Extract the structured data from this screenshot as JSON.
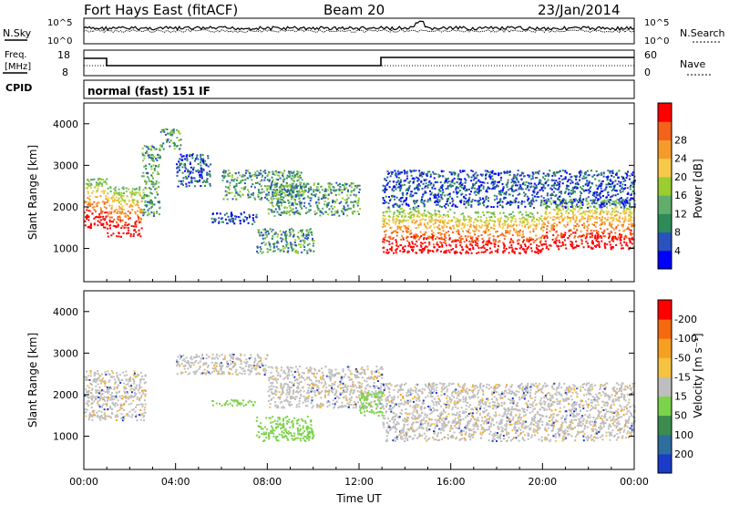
{
  "header": {
    "station": "Fort Hays East (fitACF)",
    "beam": "Beam 20",
    "date": "23/Jan/2014"
  },
  "panels": {
    "nsky_label": "N.Sky",
    "nsky_ticks": [
      "10^5",
      "10^0"
    ],
    "nsearch_label": "N.Search",
    "nsearch_ticks": [
      "10^5",
      "10^0"
    ],
    "freq_label": "Freq.",
    "freq_unit": "[MHz]",
    "freq_ticks": [
      "18",
      "8"
    ],
    "nave_label": "Nave",
    "nave_ticks": [
      "60",
      "0"
    ],
    "cpid_label": "CPID",
    "cpid_value": "normal (fast) 151 IF"
  },
  "chart_data": [
    {
      "type": "heatmap",
      "name": "power",
      "ylabel": "Slant Range [km]",
      "yticks": [
        1000,
        2000,
        3000,
        4000
      ],
      "ylim": [
        200,
        4500
      ],
      "xlim": [
        0,
        24
      ],
      "xticks": [
        "00:00",
        "04:00",
        "08:00",
        "12:00",
        "16:00",
        "20:00",
        "00:00"
      ],
      "colorbar_label": "Power [dB]",
      "colorbar_ticks": [
        "4",
        "8",
        "12",
        "16",
        "20",
        "24",
        "28"
      ],
      "colorbar_colors": [
        "#0000ff",
        "#2a52be",
        "#2e8b57",
        "#5fae6b",
        "#9acd32",
        "#f7c948",
        "#f59b2b",
        "#f5621b",
        "#ff0000"
      ],
      "blobs": [
        {
          "t0": 0.0,
          "t1": 1.0,
          "r0": 1500,
          "r1": 2700,
          "level": "high"
        },
        {
          "t0": 1.0,
          "t1": 2.5,
          "r0": 1300,
          "r1": 2500,
          "level": "high"
        },
        {
          "t0": 2.5,
          "t1": 3.3,
          "r0": 1800,
          "r1": 3500,
          "level": "mid"
        },
        {
          "t0": 3.3,
          "t1": 4.2,
          "r0": 3400,
          "r1": 3900,
          "level": "mid"
        },
        {
          "t0": 4.0,
          "t1": 5.5,
          "r0": 2500,
          "r1": 3300,
          "level": "low"
        },
        {
          "t0": 6.0,
          "t1": 9.5,
          "r0": 2200,
          "r1": 2900,
          "level": "mid"
        },
        {
          "t0": 8.0,
          "t1": 12.0,
          "r0": 1800,
          "r1": 2600,
          "level": "mid"
        },
        {
          "t0": 5.5,
          "t1": 7.5,
          "r0": 1600,
          "r1": 1900,
          "level": "low"
        },
        {
          "t0": 7.5,
          "t1": 10.0,
          "r0": 900,
          "r1": 1500,
          "level": "mid"
        },
        {
          "t0": 13.0,
          "t1": 16.0,
          "r0": 900,
          "r1": 2000,
          "level": "high"
        },
        {
          "t0": 16.0,
          "t1": 20.0,
          "r0": 900,
          "r1": 1900,
          "level": "high"
        },
        {
          "t0": 20.0,
          "t1": 24.0,
          "r0": 1000,
          "r1": 2200,
          "level": "high"
        },
        {
          "t0": 13.0,
          "t1": 24.0,
          "r0": 2000,
          "r1": 2900,
          "level": "low"
        }
      ]
    },
    {
      "type": "heatmap",
      "name": "velocity",
      "ylabel": "Slant Range [km]",
      "yticks": [
        1000,
        2000,
        3000,
        4000
      ],
      "ylim": [
        200,
        4500
      ],
      "xlim": [
        0,
        24
      ],
      "xticks": [
        "00:00",
        "04:00",
        "08:00",
        "12:00",
        "16:00",
        "20:00",
        "00:00"
      ],
      "xlabel": "Time UT",
      "colorbar_label": "Velocity [m s⁻¹]",
      "colorbar_ticks": [
        "200",
        "100",
        "50",
        "15",
        "-15",
        "-50",
        "-100",
        "-200"
      ],
      "colorbar_colors": [
        "#1a3cc8",
        "#2e6e9e",
        "#3c8c50",
        "#7cd24a",
        "#bebebe",
        "#f5c242",
        "#f5a020",
        "#f56a10",
        "#ff0000"
      ],
      "blobs": [
        {
          "t0": 0.0,
          "t1": 2.7,
          "r0": 1400,
          "r1": 2600,
          "level": "ground"
        },
        {
          "t0": 4.0,
          "t1": 8.0,
          "r0": 2500,
          "r1": 3000,
          "level": "ground"
        },
        {
          "t0": 8.0,
          "t1": 13.0,
          "r0": 1700,
          "r1": 2700,
          "level": "ground"
        },
        {
          "t0": 13.0,
          "t1": 24.0,
          "r0": 900,
          "r1": 2300,
          "level": "ground"
        },
        {
          "t0": 5.5,
          "t1": 7.5,
          "r0": 1750,
          "r1": 1900,
          "level": "slow"
        },
        {
          "t0": 7.5,
          "t1": 10.0,
          "r0": 900,
          "r1": 1500,
          "level": "slow"
        },
        {
          "t0": 12.0,
          "t1": 13.0,
          "r0": 1500,
          "r1": 2100,
          "level": "slow"
        }
      ]
    }
  ]
}
